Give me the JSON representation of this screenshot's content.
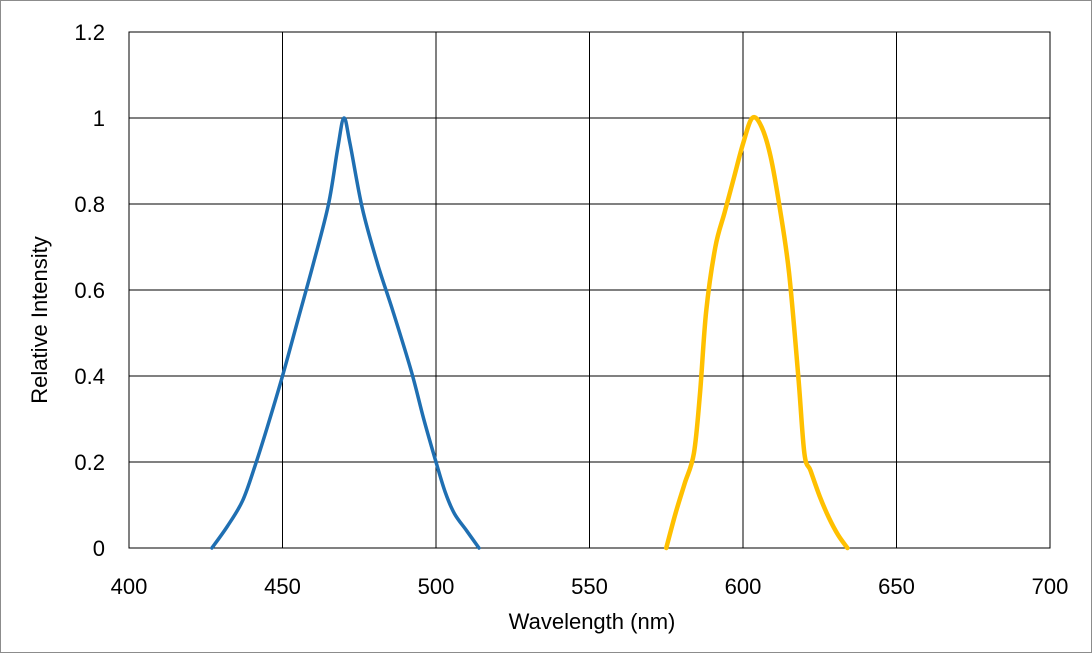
{
  "chart_data": {
    "type": "line",
    "title": "",
    "xlabel": "Wavelength (nm)",
    "ylabel": "Relative Intensity",
    "xlim": [
      400,
      700
    ],
    "ylim": [
      0,
      1.2
    ],
    "x_ticks": [
      400,
      450,
      500,
      550,
      600,
      650,
      700
    ],
    "y_ticks": [
      0,
      0.2,
      0.4,
      0.6,
      0.8,
      1,
      1.2
    ],
    "x_tick_labels": [
      "400",
      "450",
      "500",
      "550",
      "600",
      "650",
      "700"
    ],
    "y_tick_labels": [
      "0",
      "0.2",
      "0.4",
      "0.6",
      "0.8",
      "1",
      "1.2"
    ],
    "grid": true,
    "legend": "none",
    "series": [
      {
        "color": "#1f6fb2",
        "x": [
          427,
          432,
          437,
          441,
          445,
          450,
          455,
          460,
          465,
          468,
          470,
          472,
          476,
          481,
          486,
          492,
          496,
          500,
          503,
          506,
          510,
          514
        ],
        "y": [
          0,
          0.05,
          0.11,
          0.19,
          0.28,
          0.4,
          0.53,
          0.66,
          0.8,
          0.93,
          1,
          0.94,
          0.79,
          0.66,
          0.55,
          0.41,
          0.3,
          0.2,
          0.13,
          0.08,
          0.04,
          0
        ]
      },
      {
        "color": "#ffc000",
        "x": [
          575,
          578,
          581,
          584,
          586,
          588,
          591,
          594,
          597,
          600,
          603,
          606,
          609,
          612,
          615,
          618,
          620,
          622,
          625,
          628,
          631,
          634
        ],
        "y": [
          0,
          0.08,
          0.15,
          0.22,
          0.36,
          0.55,
          0.7,
          0.78,
          0.86,
          0.94,
          1,
          0.98,
          0.91,
          0.79,
          0.64,
          0.4,
          0.22,
          0.18,
          0.12,
          0.07,
          0.03,
          0
        ]
      }
    ]
  }
}
